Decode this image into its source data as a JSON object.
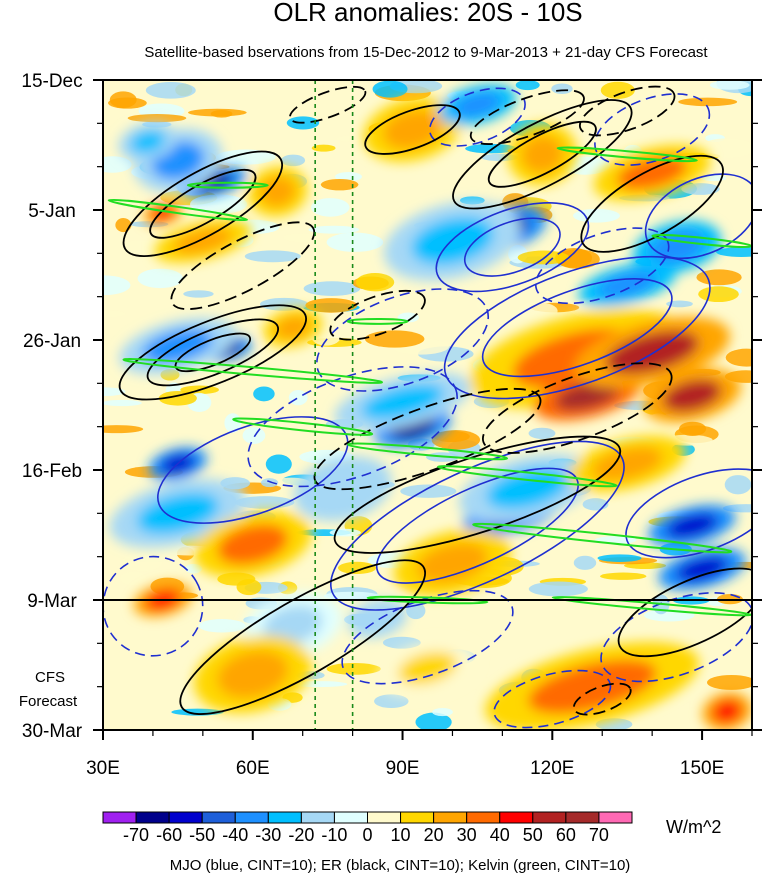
{
  "chart_data": {
    "type": "heatmap",
    "title": "OLR anomalies: 20S - 10S",
    "subtitle": "Satellite-based bservations from 15-Dec-2012 to 9-Mar-2013 + 21-day CFS Forecast",
    "x_axis": {
      "range": [
        30,
        160
      ],
      "ticks": [
        30,
        60,
        90,
        120,
        150
      ],
      "tick_labels": [
        "30E",
        "60E",
        "90E",
        "120E",
        "150E"
      ]
    },
    "y_axis": {
      "range_days_from_start": [
        0,
        105
      ],
      "ticks_days": [
        0,
        21,
        42,
        63,
        84,
        105
      ],
      "tick_labels": [
        "15-Dec",
        "5-Jan",
        "26-Jan",
        "16-Feb",
        "9-Mar",
        "30-Mar"
      ]
    },
    "forecast_start_day": 84,
    "forecast_label": [
      "CFS",
      "Forecast"
    ],
    "dashed_longitudes": [
      72.5,
      80
    ],
    "colorbar": {
      "levels": [
        -70,
        -60,
        -50,
        -40,
        -30,
        -20,
        -10,
        0,
        10,
        20,
        30,
        40,
        50,
        60,
        70
      ],
      "tick_labels": [
        "-70",
        "-60",
        "-50",
        "-40",
        "-30",
        "-20",
        "-10",
        "0",
        "10",
        "20",
        "30",
        "40",
        "50",
        "60",
        "70"
      ],
      "colors": [
        "#a020f0",
        "#00008b",
        "#0000cd",
        "#1e5fd9",
        "#1e90ff",
        "#00bfff",
        "#a6d8f5",
        "#e0ffff",
        "#fffacd",
        "#ffd700",
        "#ffa500",
        "#ff6a00",
        "#ff0000",
        "#b22222",
        "#a52a2a",
        "#ff69b4"
      ],
      "units": "W/m^2"
    },
    "blobs": [
      {
        "lon": 52,
        "day": 16.5,
        "rx": 7,
        "ry": 2.2,
        "val": -65
      },
      {
        "lon": 45,
        "day": 13,
        "rx": 9,
        "ry": 5,
        "val": -35
      },
      {
        "lon": 39,
        "day": 10,
        "rx": 6,
        "ry": 3,
        "val": -25
      },
      {
        "lon": 42,
        "day": 21.5,
        "rx": 4,
        "ry": 1.8,
        "val": 40
      },
      {
        "lon": 50,
        "day": 26,
        "rx": 10,
        "ry": 3,
        "val": 25
      },
      {
        "lon": 65,
        "day": 18,
        "rx": 6,
        "ry": 4,
        "val": 20
      },
      {
        "lon": 92,
        "day": 8,
        "rx": 10,
        "ry": 5,
        "val": 25
      },
      {
        "lon": 105,
        "day": 4,
        "rx": 8,
        "ry": 3,
        "val": -40
      },
      {
        "lon": 118,
        "day": 12,
        "rx": 7,
        "ry": 5,
        "val": 20
      },
      {
        "lon": 140,
        "day": 15,
        "rx": 12,
        "ry": 4,
        "val": 35
      },
      {
        "lon": 110,
        "day": 24,
        "rx": 9,
        "ry": 3.5,
        "val": -65
      },
      {
        "lon": 100,
        "day": 26,
        "rx": 14,
        "ry": 6,
        "val": -30
      },
      {
        "lon": 145,
        "day": 27,
        "rx": 9,
        "ry": 4,
        "val": -40
      },
      {
        "lon": 135,
        "day": 33,
        "rx": 10,
        "ry": 3,
        "val": -40
      },
      {
        "lon": 55,
        "day": 43.5,
        "rx": 5,
        "ry": 1.8,
        "val": -65
      },
      {
        "lon": 45,
        "day": 43,
        "rx": 12,
        "ry": 4,
        "val": -35
      },
      {
        "lon": 68,
        "day": 40,
        "rx": 6,
        "ry": 3,
        "val": 25
      },
      {
        "lon": 125,
        "day": 45,
        "rx": 22,
        "ry": 7,
        "val": 35
      },
      {
        "lon": 127,
        "day": 51,
        "rx": 11,
        "ry": 3.5,
        "val": 65
      },
      {
        "lon": 148,
        "day": 51,
        "rx": 10,
        "ry": 4,
        "val": 50
      },
      {
        "lon": 140,
        "day": 44,
        "rx": 16,
        "ry": 5,
        "val": 50
      },
      {
        "lon": 92,
        "day": 56,
        "rx": 8,
        "ry": 3,
        "val": -65
      },
      {
        "lon": 90,
        "day": 52,
        "rx": 14,
        "ry": 4,
        "val": -30
      },
      {
        "lon": 45,
        "day": 62,
        "rx": 6,
        "ry": 2.5,
        "val": -55
      },
      {
        "lon": 45,
        "day": 70,
        "rx": 14,
        "ry": 5,
        "val": -30
      },
      {
        "lon": 78,
        "day": 66,
        "rx": 10,
        "ry": 5,
        "val": -20
      },
      {
        "lon": 112,
        "day": 70,
        "rx": 10,
        "ry": 3,
        "val": -60
      },
      {
        "lon": 115,
        "day": 66,
        "rx": 14,
        "ry": 5,
        "val": -25
      },
      {
        "lon": 148,
        "day": 72,
        "rx": 9,
        "ry": 3,
        "val": -55
      },
      {
        "lon": 150,
        "day": 79,
        "rx": 9,
        "ry": 3,
        "val": -60
      },
      {
        "lon": 60,
        "day": 75,
        "rx": 12,
        "ry": 5,
        "val": 30
      },
      {
        "lon": 100,
        "day": 78,
        "rx": 12,
        "ry": 5,
        "val": 20
      },
      {
        "lon": 135,
        "day": 62,
        "rx": 12,
        "ry": 4,
        "val": 25
      },
      {
        "lon": 42,
        "day": 84,
        "rx": 6,
        "ry": 2.5,
        "val": 40
      },
      {
        "lon": 68,
        "day": 88,
        "rx": 10,
        "ry": 5,
        "val": -15
      },
      {
        "lon": 60,
        "day": 96,
        "rx": 12,
        "ry": 6,
        "val": 20
      },
      {
        "lon": 128,
        "day": 98,
        "rx": 22,
        "ry": 6,
        "val": 30
      },
      {
        "lon": 155,
        "day": 102,
        "rx": 5,
        "ry": 3,
        "val": 40
      },
      {
        "lon": 95,
        "day": 95,
        "rx": 10,
        "ry": 4,
        "val": 15
      },
      {
        "lon": 85,
        "day": 87,
        "rx": 6,
        "ry": 3,
        "val": -20
      }
    ]
  },
  "footer": "MJO (blue, CINT=10); ER (black, CINT=10); Kelvin (green, CINT=10)"
}
